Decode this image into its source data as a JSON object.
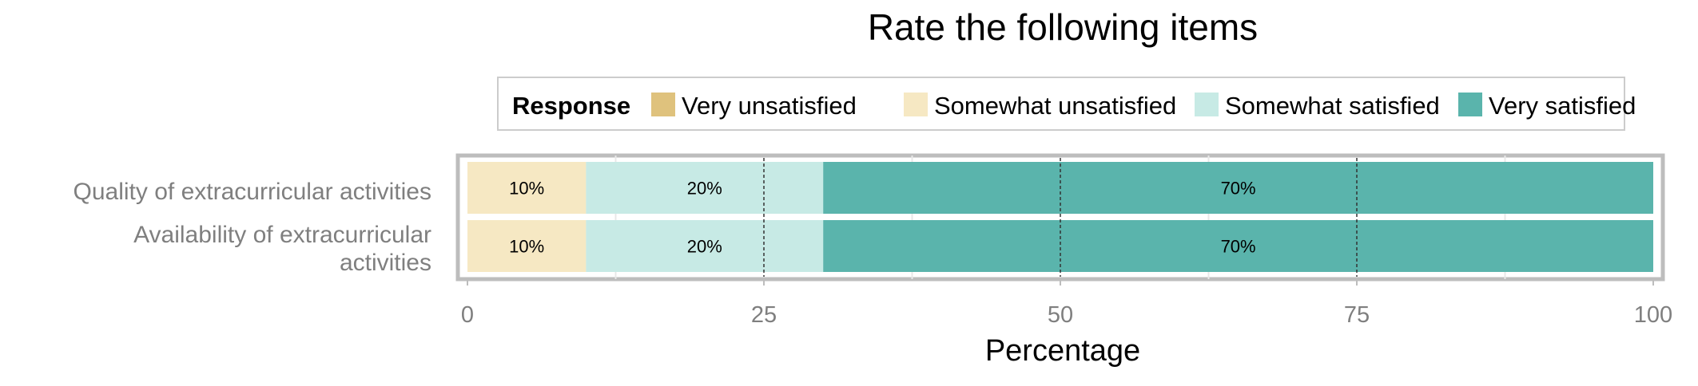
{
  "chart_data": {
    "type": "bar",
    "orientation": "horizontal",
    "stacked": true,
    "title": "Rate the following items",
    "xlabel": "Percentage",
    "ylabel": "",
    "xlim": [
      0,
      100
    ],
    "xticks": [
      0,
      25,
      50,
      75,
      100
    ],
    "grid": true,
    "legend": {
      "title": "Response",
      "placement": "top",
      "entries": [
        "Very unsatisfied",
        "Somewhat unsatisfied",
        "Somewhat satisfied",
        "Very satisfied"
      ]
    },
    "categories": [
      "Quality of extracurricular activities",
      "Availability of extracurricular activities"
    ],
    "series": [
      {
        "name": "Very unsatisfied",
        "color": "#dfc27d",
        "values": [
          0,
          0
        ],
        "labels": [
          "",
          ""
        ]
      },
      {
        "name": "Somewhat unsatisfied",
        "color": "#f6e8c3",
        "values": [
          10,
          10
        ],
        "labels": [
          "10%",
          "10%"
        ]
      },
      {
        "name": "Somewhat satisfied",
        "color": "#c7eae5",
        "values": [
          20,
          20
        ],
        "labels": [
          "20%",
          "20%"
        ]
      },
      {
        "name": "Very satisfied",
        "color": "#5ab4ac",
        "values": [
          70,
          70
        ],
        "labels": [
          "70%",
          "70%"
        ]
      }
    ]
  }
}
